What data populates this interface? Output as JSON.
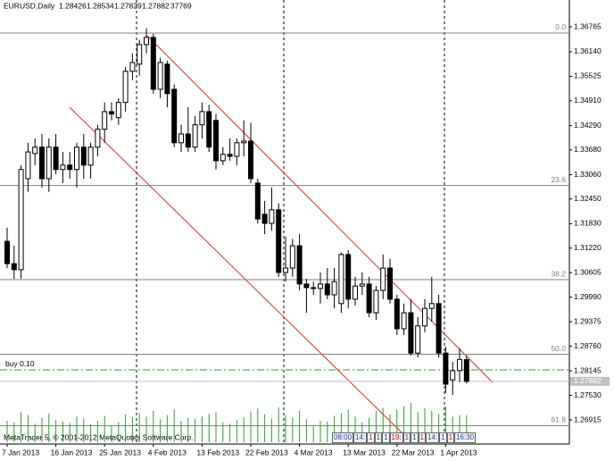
{
  "chart_data": {
    "type": "candlestick",
    "title": "EURUSD,Daily",
    "categories": [
      "7 Jan 2013",
      null,
      null,
      null,
      null,
      null,
      null,
      "16 Jan 2013",
      null,
      null,
      null,
      null,
      null,
      null,
      "25 Jan 2013",
      null,
      null,
      null,
      null,
      null,
      null,
      "4 Feb 2013",
      null,
      null,
      null,
      null,
      null,
      null,
      "13 Feb 2013",
      null,
      null,
      null,
      null,
      null,
      null,
      "22 Feb 2013",
      null,
      null,
      null,
      null,
      null,
      null,
      "4 Mar 2013",
      null,
      null,
      null,
      null,
      null,
      null,
      "13 Mar 2013",
      null,
      null,
      null,
      null,
      null,
      null,
      "22 Mar 2013",
      null,
      null,
      null,
      null,
      null,
      null,
      "1 Apr 2013",
      null,
      null,
      null
    ],
    "ohlc": [
      [
        1.3139,
        1.3173,
        1.3072,
        1.3083
      ],
      [
        1.3083,
        1.3128,
        1.3045,
        1.3068
      ],
      [
        1.3068,
        1.333,
        1.3045,
        1.3319
      ],
      [
        1.3296,
        1.3386,
        1.3263,
        1.3363
      ],
      [
        1.3359,
        1.3397,
        1.333,
        1.3375
      ],
      [
        1.3375,
        1.3408,
        1.3274,
        1.3296
      ],
      [
        1.3296,
        1.3397,
        1.3263,
        1.3375
      ],
      [
        1.3375,
        1.3408,
        1.3307,
        1.3319
      ],
      [
        1.3319,
        1.3363,
        1.3285,
        1.333
      ],
      [
        1.333,
        1.3363,
        1.3296,
        1.3319
      ],
      [
        1.3319,
        1.3386,
        1.3274,
        1.3375
      ],
      [
        1.3375,
        1.3408,
        1.3296,
        1.333
      ],
      [
        1.333,
        1.3386,
        1.3296,
        1.3375
      ],
      [
        1.3375,
        1.3431,
        1.3352,
        1.342
      ],
      [
        1.342,
        1.3487,
        1.3386,
        1.3464
      ],
      [
        1.3464,
        1.3487,
        1.3442,
        1.3458
      ],
      [
        1.3449,
        1.3498,
        1.3431,
        1.3487
      ],
      [
        1.3487,
        1.3576,
        1.3464,
        1.3565
      ],
      [
        1.3565,
        1.361,
        1.3543,
        1.3587
      ],
      [
        1.3583,
        1.3644,
        1.3554,
        1.3632
      ],
      [
        1.3632,
        1.3673,
        1.361,
        1.365
      ],
      [
        1.365,
        1.3659,
        1.3509,
        1.352
      ],
      [
        1.352,
        1.3599,
        1.3498,
        1.3587
      ],
      [
        1.3583,
        1.3592,
        1.3475,
        1.3509
      ],
      [
        1.352,
        1.3532,
        1.3375,
        1.3386
      ],
      [
        1.3386,
        1.3431,
        1.3363,
        1.3408
      ],
      [
        1.3408,
        1.3475,
        1.3363,
        1.3375
      ],
      [
        1.3375,
        1.3453,
        1.3363,
        1.3431
      ],
      [
        1.3431,
        1.3487,
        1.3397,
        1.3464
      ],
      [
        1.3464,
        1.3481,
        1.3363,
        1.3375
      ],
      [
        1.3442,
        1.3458,
        1.3319,
        1.3341
      ],
      [
        1.3341,
        1.3375,
        1.333,
        1.3357
      ],
      [
        1.3357,
        1.3397,
        1.3341,
        1.3352
      ],
      [
        1.3352,
        1.3397,
        1.333,
        1.3386
      ],
      [
        1.3386,
        1.3442,
        1.3352,
        1.339
      ],
      [
        1.339,
        1.3436,
        1.3285,
        1.3296
      ],
      [
        1.3285,
        1.3296,
        1.3184,
        1.3195
      ],
      [
        1.3207,
        1.324,
        1.3157,
        1.3184
      ],
      [
        1.3184,
        1.3274,
        1.3166,
        1.3218
      ],
      [
        1.3218,
        1.3234,
        1.305,
        1.3061
      ],
      [
        1.3061,
        1.3151,
        1.3038,
        1.3072
      ],
      [
        1.3072,
        1.3145,
        1.305,
        1.3128
      ],
      [
        1.3128,
        1.3157,
        1.3016,
        1.3032
      ],
      [
        1.3032,
        1.3045,
        1.296,
        1.3023
      ],
      [
        1.3023,
        1.3038,
        1.3005,
        1.3021
      ],
      [
        1.3021,
        1.3061,
        1.2983,
        1.3032
      ],
      [
        1.3032,
        1.3072,
        1.2994,
        1.3005
      ],
      [
        1.3005,
        1.3072,
        1.2971,
        1.3038
      ],
      [
        1.2983,
        1.3111,
        1.296,
        1.3106
      ],
      [
        1.3106,
        1.3117,
        1.2971,
        1.2994
      ],
      [
        1.2994,
        1.305,
        1.2978,
        1.3027
      ],
      [
        1.3027,
        1.3061,
        1.3005,
        1.3032
      ],
      [
        1.3032,
        1.305,
        1.2949,
        1.296
      ],
      [
        1.296,
        1.3027,
        1.2942,
        1.3016
      ],
      [
        1.3016,
        1.3106,
        1.2994,
        1.3072
      ],
      [
        1.3072,
        1.3095,
        1.2983,
        1.2994
      ],
      [
        1.2994,
        1.3005,
        1.2904,
        1.292
      ],
      [
        1.292,
        1.2983,
        1.2904,
        1.296
      ],
      [
        1.296,
        1.2994,
        1.2853,
        1.2859
      ],
      [
        1.2859,
        1.2949,
        1.2848,
        1.2927
      ],
      [
        1.2927,
        1.2994,
        1.2911,
        1.2971
      ],
      [
        1.2971,
        1.305,
        1.2938,
        1.2983
      ],
      [
        1.2983,
        1.3005,
        1.2848,
        1.2859
      ],
      [
        1.2859,
        1.2875,
        1.2759,
        1.2781
      ],
      [
        1.2792,
        1.2837,
        1.2754,
        1.2815
      ],
      [
        1.2815,
        1.2871,
        1.2786,
        1.2843
      ],
      [
        1.28426,
        1.28534,
        1.27829,
        1.27882
      ]
    ],
    "volumes": [
      30000,
      28000,
      42000,
      38000,
      26000,
      34000,
      40000,
      31000,
      29000,
      27000,
      36000,
      33000,
      25000,
      30000,
      37000,
      24000,
      28000,
      39000,
      35000,
      41000,
      36000,
      44000,
      32000,
      38000,
      46000,
      30000,
      34000,
      33000,
      36000,
      40000,
      42000,
      28000,
      26000,
      31000,
      35000,
      43000,
      47000,
      39000,
      33000,
      49000,
      38000,
      35000,
      44000,
      32000,
      22000,
      30000,
      29000,
      37000,
      41000,
      45000,
      36000,
      28000,
      34000,
      44000,
      48000,
      39000,
      46000,
      50000,
      55000,
      42000,
      48000,
      44000,
      40000,
      50000,
      36000,
      38000,
      37769
    ],
    "color_up": "#ffffff",
    "color_down": "#000000",
    "volume_color": "#2e9e2e",
    "ylim": [
      1.26311,
      1.37437
    ],
    "yticks": [
      1.36765,
      {
        "value": 1.3614,
        "label": "1.36140"
      },
      1.35525,
      {
        "value": 1.3491,
        "label": "1.34910"
      },
      {
        "value": 1.3429,
        "label": "1.34290"
      },
      {
        "value": 1.3368,
        "label": "1.33680"
      },
      {
        "value": 1.3306,
        "label": "1.33060"
      },
      {
        "value": 1.3245,
        "label": "1.32450"
      },
      {
        "value": 1.3183,
        "label": "1.31830"
      },
      {
        "value": 1.3122,
        "label": "1.31220"
      },
      1.30605,
      {
        "value": 1.2999,
        "label": "1.29990"
      },
      1.29375,
      {
        "value": 1.2876,
        "label": "1.28760"
      },
      1.28145,
      {
        "value": 1.2753,
        "label": "1.27530"
      },
      1.26915
    ],
    "fibo": [
      {
        "level": "0.0",
        "price": 1.3661
      },
      {
        "level": "23.6",
        "price": 1.3279
      },
      {
        "level": "38.2",
        "price": 1.3043
      },
      {
        "level": "50.0",
        "price": 1.2856
      },
      {
        "level": "61.8",
        "price": 1.2677
      }
    ],
    "buy_label": "buy 0.10",
    "buy_price": 1.2817,
    "copyright": "MetaTrader 5, © 2001-2012 MetaQuotes Software Corp.",
    "toolbar": [
      "08:00",
      "14:",
      "1",
      "1",
      "1",
      "19:",
      "1",
      "1",
      "1",
      "14:",
      "1",
      "1",
      "16:30"
    ]
  }
}
